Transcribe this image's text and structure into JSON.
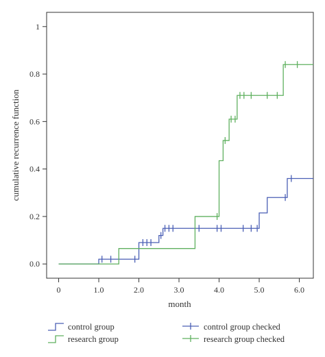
{
  "chart_data": {
    "type": "line",
    "title": "",
    "xlabel": "month",
    "ylabel": "cumulative recurrence function",
    "xlim": [
      -0.3,
      6.35
    ],
    "ylim": [
      -0.06,
      1.06
    ],
    "x_ticks": [
      {
        "value": 0,
        "label": "0"
      },
      {
        "value": 1,
        "label": "1.0"
      },
      {
        "value": 2,
        "label": "2.0"
      },
      {
        "value": 3,
        "label": "3.0"
      },
      {
        "value": 4,
        "label": "4.0"
      },
      {
        "value": 5,
        "label": "5.0"
      },
      {
        "value": 6,
        "label": "6.0"
      }
    ],
    "y_ticks": [
      {
        "value": 0,
        "label": "0.0"
      },
      {
        "value": 0.2,
        "label": "0.2"
      },
      {
        "value": 0.4,
        "label": "0.4"
      },
      {
        "value": 0.6,
        "label": "0.6"
      },
      {
        "value": 0.8,
        "label": "0.8"
      },
      {
        "value": 1,
        "label": "1"
      }
    ],
    "grid": false,
    "legend_position": "bottom",
    "series": [
      {
        "name": "control group",
        "color": "#4a5fb5",
        "step_x": [
          0,
          1.0,
          1.5,
          2.0,
          2.5,
          2.6,
          3.4,
          5.0,
          5.2,
          5.7,
          6.35
        ],
        "step_y": [
          0,
          0.02,
          0.02,
          0.09,
          0.12,
          0.15,
          0.15,
          0.215,
          0.28,
          0.36,
          0.36
        ],
        "censored_name": "control group checked",
        "censored_x": [
          1.08,
          1.3,
          1.9,
          2.1,
          2.2,
          2.3,
          2.55,
          2.65,
          2.75,
          2.85,
          3.5,
          3.95,
          4.05,
          4.6,
          4.8,
          4.95,
          5.65,
          5.8
        ]
      },
      {
        "name": "research group",
        "color": "#5fb05f",
        "step_x": [
          0,
          1.5,
          3.4,
          4.0,
          4.1,
          4.25,
          4.45,
          5.6,
          6.35
        ],
        "step_y": [
          0,
          0.065,
          0.2,
          0.435,
          0.52,
          0.61,
          0.71,
          0.84,
          0.84
        ],
        "censored_name": "research group checked",
        "censored_x": [
          3.95,
          4.15,
          4.3,
          4.4,
          4.52,
          4.62,
          4.8,
          5.2,
          5.45,
          5.65,
          5.95
        ]
      }
    ]
  }
}
